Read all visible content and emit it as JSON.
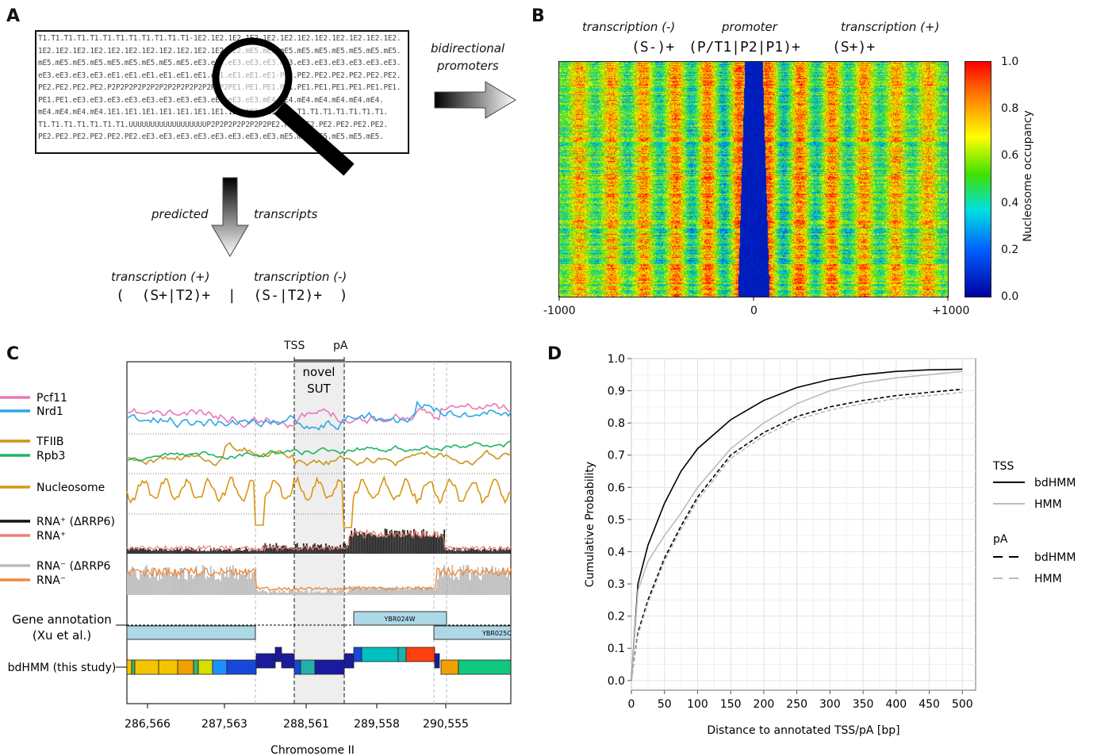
{
  "panels": {
    "a": {
      "letter": "A",
      "sequence_lines": [
        "T1.T1.T1.T1.T1.T1.T1.T1.T1.T1.T1.T1-1E2.1E2.1E2.1E2.1E2.1E2.1E2.1E2.1E2.1E2.1E2.1E2.",
        "1E2.1E2.1E2.1E2.1E2.1E2.1E2.1E2.1E2.1E2.1E2.1E2.mE5.mE5.mE5.mE5.mE5.mE5.mE5.mE5.mE5.",
        "mE5.mE5.mE5.mE5.mE5.mE5.mE5.mE5.mE5.eE3.eE3.eE3.eE3.eE3.eE3.eE3.eE3.eE3.eE3.eE3.eE3.",
        "eE3.eE3.eE3.eE3.eE1.eE1.eE1.eE1.eE1.eE1.eE1.eE1.eE1.eE1-PE2.PE2.PE2.PE2.PE2.PE2.PE2.",
        "PE2.PE2.PE2.PE2.P2P2P2P2P2P2P2P2P2P2P2P2P2P2PE1.PE1.PE1.PE1.PE1.PE1.PE1.PE1.PE1.PE1.",
        "PE1.PE1.eE3.eE3.eE3.eE3.eE3.eE3.eE3.eE3.eE3.eE3.eE3.mE4.mE4.mE4.mE4.mE4.mE4.mE4.",
        "mE4.mE4.mE4.mE4.1E1.1E1.1E1.1E1.1E1.1E1.1E1.1E1.1E1.1E1.1E1.T1.T1.T1.T1.T1.T1.T1.",
        "T1.T1.T1.T1.T1.T1.T1.UUUUUUUUUUUUUUUUUUP2P2P2P2P2P2P2PE2.PE2.PE2.PE2.PE2.PE2.PE2.",
        "PE2.PE2.PE2.PE2.PE2.PE2.eE3.eE3.eE3.eE3.eE3.eE3.eE3.eE3.mE5.mE5.mE5.mE5.mE5.mE5."
      ],
      "arrow_right_label_1": "bidirectional",
      "arrow_right_label_2": "promoters",
      "arrow_down_label_left": "predicted",
      "arrow_down_label_right": "transcripts",
      "bottom_label_plus": "transcription (+)",
      "bottom_label_minus": "transcription (-)",
      "bottom_formula": "(  (S+|T2)+  |  (S-|T2)+  )"
    },
    "b": {
      "letter": "B",
      "top_label_minus": "transcription (-)",
      "top_label_promoter": "promoter",
      "top_label_plus": "transcription (+)",
      "formula_left": "(S-)+",
      "formula_mid": "(P/T1|P2|P1)+",
      "formula_right": "(S+)+",
      "x_ticks": [
        "-1000",
        "0",
        "+1000"
      ],
      "colorbar_label": "Nucleosome occupancy",
      "colorbar_ticks": [
        "1.0",
        "0.8",
        "0.6",
        "0.4",
        "0.2",
        "0.0"
      ]
    },
    "c": {
      "letter": "C",
      "top_tss": "TSS",
      "top_pa": "pA",
      "novel_label_1": "novel",
      "novel_label_2": "SUT",
      "tracks": [
        {
          "name": "Pcf11",
          "color": "#e878b8"
        },
        {
          "name": "Nrd1",
          "color": "#2aa7e8"
        },
        {
          "name": "TFIIB",
          "color": "#c8961a"
        },
        {
          "name": "Rpb3",
          "color": "#1eb464"
        },
        {
          "name": "Nucleosome",
          "color": "#d99614"
        },
        {
          "name": "RNA⁺ (ΔRRP6)",
          "color": "#111111"
        },
        {
          "name": "RNA⁺",
          "color": "#f08070"
        },
        {
          "name": "RNA⁻ (ΔRRP6",
          "color": "#bbbbbb"
        },
        {
          "name": "RNA⁻",
          "color": "#ef8a3c"
        }
      ],
      "gene_annotation_label_1": "Gene annotation",
      "gene_annotation_label_2": "(Xu et al.)",
      "gene_names": [
        "YBR024W",
        "YBR025C"
      ],
      "bdhmm_label": "bdHMM (this study)",
      "x_ticks": [
        "286,566",
        "287,563",
        "288,561",
        "289,558",
        "290,555"
      ],
      "x_label": "Chromosome II"
    },
    "d": {
      "letter": "D",
      "legend_tss": "TSS",
      "legend_pa": "pA",
      "legend_bdhmm": "bdHMM",
      "legend_hmm": "HMM"
    }
  },
  "chart_data": {
    "type": "line",
    "xlabel": "Distance to annotated TSS/pA [bp]",
    "ylabel": "Cumulative Probability",
    "xlim": [
      0,
      520
    ],
    "ylim": [
      -0.03,
      1.0
    ],
    "x_ticks": [
      0,
      50,
      100,
      150,
      200,
      250,
      300,
      350,
      400,
      450,
      500
    ],
    "y_ticks": [
      0.0,
      0.1,
      0.2,
      0.3,
      0.4,
      0.5,
      0.6,
      0.7,
      0.8,
      0.9,
      1.0
    ],
    "grid": true,
    "legend_placement": "right-outside",
    "x": [
      0,
      10,
      25,
      50,
      75,
      100,
      150,
      200,
      250,
      300,
      350,
      400,
      450,
      500
    ],
    "series": [
      {
        "name": "bdHMM",
        "group": "TSS",
        "color": "#000000",
        "dash": "solid",
        "values": [
          0.0,
          0.3,
          0.42,
          0.55,
          0.65,
          0.72,
          0.81,
          0.87,
          0.91,
          0.935,
          0.95,
          0.96,
          0.965,
          0.967
        ]
      },
      {
        "name": "HMM",
        "group": "TSS",
        "color": "#bbbbbb",
        "dash": "solid",
        "values": [
          0.0,
          0.28,
          0.37,
          0.45,
          0.52,
          0.6,
          0.72,
          0.8,
          0.86,
          0.9,
          0.925,
          0.94,
          0.95,
          0.96
        ]
      },
      {
        "name": "bdHMM",
        "group": "pA",
        "color": "#000000",
        "dash": "dashed",
        "values": [
          0.0,
          0.15,
          0.25,
          0.38,
          0.48,
          0.57,
          0.7,
          0.77,
          0.82,
          0.85,
          0.87,
          0.885,
          0.895,
          0.905
        ]
      },
      {
        "name": "HMM",
        "group": "pA",
        "color": "#bbbbbb",
        "dash": "dashed",
        "values": [
          0.0,
          0.14,
          0.24,
          0.37,
          0.47,
          0.56,
          0.69,
          0.76,
          0.81,
          0.84,
          0.86,
          0.875,
          0.885,
          0.895
        ]
      }
    ]
  }
}
